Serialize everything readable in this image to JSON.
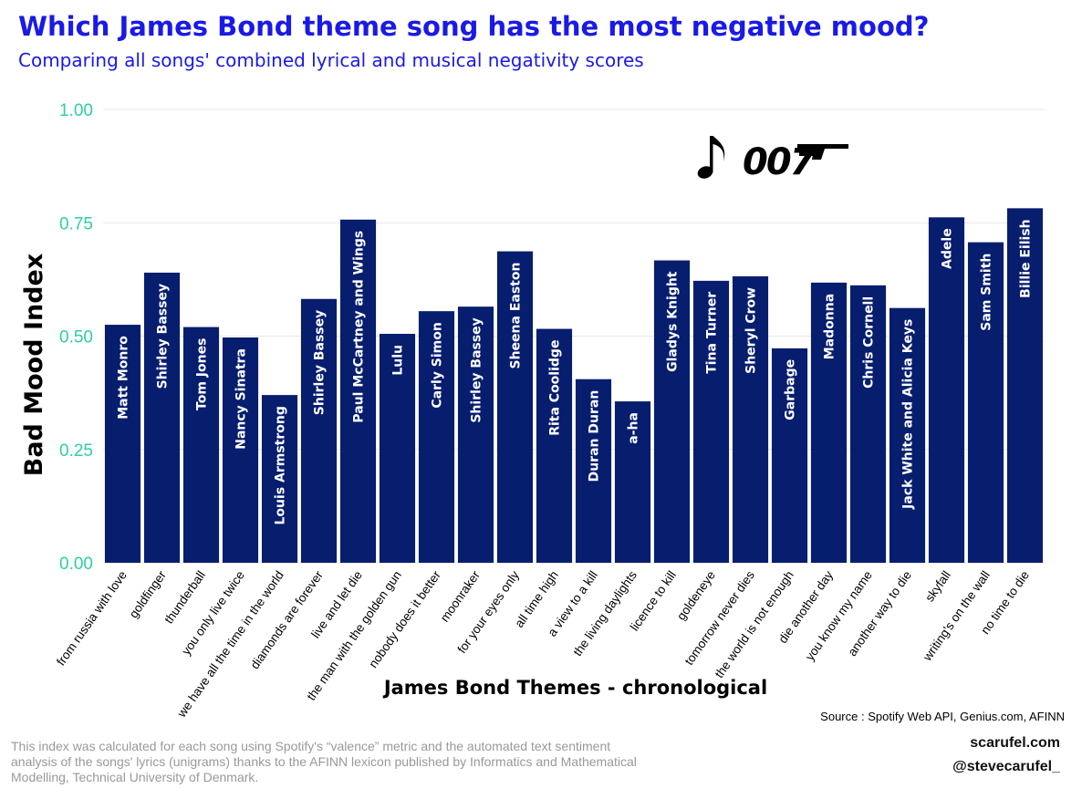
{
  "header": {
    "title": "Which James Bond theme song has the most negative mood?",
    "subtitle": "Comparing all songs' combined lyrical and musical negativity scores"
  },
  "logo": {
    "text": "007",
    "note_icon": "music-note-icon"
  },
  "footer": {
    "source": "Source : Spotify Web API, Genius.com, AFINN",
    "footnote": "This index was calculated for each song using Spotify's “valence” metric and the automated text sentiment analysis of the songs' lyrics (unigrams) thanks to the AFINN lexicon published by Informatics and Mathematical Modelling, Technical University of Denmark.",
    "site": "scarufel.com",
    "handle": "@stevecarufel_"
  },
  "colors": {
    "bar": "#071d6e",
    "title": "#1a1ae6",
    "tick": "#2ecfa0",
    "grid": "#e8e8e8"
  },
  "chart_data": {
    "type": "bar",
    "title": "Which James Bond theme song has the most negative mood?",
    "subtitle": "Comparing all songs' combined lyrical and musical negativity scores",
    "xlabel": "James Bond Themes - chronological",
    "ylabel": "Bad Mood Index",
    "ylim": [
      0,
      1
    ],
    "yticks": [
      "0.00",
      "0.25",
      "0.50",
      "0.75",
      "1.00"
    ],
    "grid": true,
    "categories": [
      "from russia with love",
      "goldfinger",
      "thunderball",
      "you only live twice",
      "we have all the time in the world",
      "diamonds are forever",
      "live and let die",
      "the man with the golden gun",
      "nobody does it better",
      "moonraker",
      "for your eyes only",
      "all time high",
      "a view to a kill",
      "the living daylights",
      "licence to kill",
      "goldeneye",
      "tomorrow never dies",
      "the world is not enough",
      "die another day",
      "you know my name",
      "another way to die",
      "skyfall",
      "writing's on the wall",
      "no time to die"
    ],
    "artists": [
      "Matt Monro",
      "Shirley Bassey",
      "Tom Jones",
      "Nancy Sinatra",
      "Louis Armstrong",
      "Shirley Bassey",
      "Paul McCartney and Wings",
      "Lulu",
      "Carly Simon",
      "Shirley Bassey",
      "Sheena Easton",
      "Rita Coolidge",
      "Duran Duran",
      "a-ha",
      "Gladys Knight",
      "Tina Turner",
      "Sheryl Crow",
      "Garbage",
      "Madonna",
      "Chris Cornell",
      "Jack White and Alicia Keys",
      "Adele",
      "Sam Smith",
      "Billie Eilish"
    ],
    "values": [
      0.525,
      0.64,
      0.52,
      0.497,
      0.37,
      0.582,
      0.757,
      0.505,
      0.555,
      0.565,
      0.687,
      0.516,
      0.405,
      0.356,
      0.667,
      0.622,
      0.632,
      0.473,
      0.618,
      0.612,
      0.562,
      0.762,
      0.707,
      0.782
    ]
  }
}
